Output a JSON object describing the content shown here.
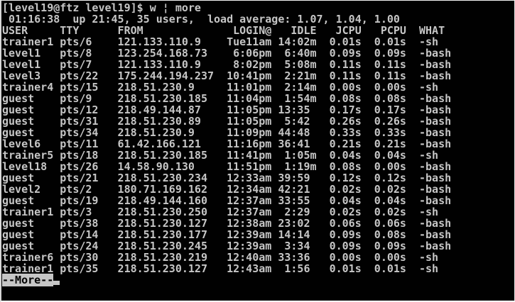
{
  "terminal": {
    "prompt_line": "[level19@ftz level19]$ w ¦ more",
    "uptime_line": " 01:16:38  up 21:45, 35 users,  load average: 1.07, 1.04, 1.00",
    "uptime": {
      "time": "01:16:38",
      "up_duration": "21:45",
      "users_count": "35",
      "load_average": [
        "1.07",
        "1.04",
        "1.00"
      ]
    },
    "header_line": "USER     TTY      FROM              LOGIN@   IDLE   JCPU   PCPU  WHAT",
    "columns": [
      "USER",
      "TTY",
      "FROM",
      "LOGIN@",
      "IDLE",
      "JCPU",
      "PCPU",
      "WHAT"
    ],
    "rows": [
      {
        "user": "trainer1",
        "tty": "pts/6",
        "from": "121.133.110.9",
        "login": "Tue11am",
        "idle": "14:02m",
        "jcpu": "0.01s",
        "pcpu": "0.01s",
        "what": "-sh"
      },
      {
        "user": "level1",
        "tty": "pts/8",
        "from": "123.254.168.73",
        "login": "6:06pm",
        "idle": "6:40m",
        "jcpu": "0.09s",
        "pcpu": "0.09s",
        "what": "-bash"
      },
      {
        "user": "level1",
        "tty": "pts/7",
        "from": "121.133.110.9",
        "login": "8:02pm",
        "idle": "5:08m",
        "jcpu": "0.11s",
        "pcpu": "0.11s",
        "what": "-bash"
      },
      {
        "user": "level3",
        "tty": "pts/22",
        "from": "175.244.194.237",
        "login": "10:41pm",
        "idle": "2:21m",
        "jcpu": "0.11s",
        "pcpu": "0.11s",
        "what": "-bash"
      },
      {
        "user": "trainer4",
        "tty": "pts/15",
        "from": "218.51.230.9",
        "login": "11:01pm",
        "idle": "2:14m",
        "jcpu": "0.00s",
        "pcpu": "0.00s",
        "what": "-sh"
      },
      {
        "user": "guest",
        "tty": "pts/9",
        "from": "218.51.230.185",
        "login": "11:04pm",
        "idle": "1:54m",
        "jcpu": "0.08s",
        "pcpu": "0.08s",
        "what": "-bash"
      },
      {
        "user": "guest",
        "tty": "pts/12",
        "from": "218.49.144.87",
        "login": "11:05pm",
        "idle": "13:35",
        "jcpu": "0.17s",
        "pcpu": "0.17s",
        "what": "-bash"
      },
      {
        "user": "guest",
        "tty": "pts/31",
        "from": "218.51.230.89",
        "login": "11:05pm",
        "idle": "5:42",
        "jcpu": "0.26s",
        "pcpu": "0.26s",
        "what": "-bash"
      },
      {
        "user": "guest",
        "tty": "pts/34",
        "from": "218.51.230.9",
        "login": "11:09pm",
        "idle": "44:48",
        "jcpu": "0.33s",
        "pcpu": "0.33s",
        "what": "-bash"
      },
      {
        "user": "level6",
        "tty": "pts/11",
        "from": "61.42.166.121",
        "login": "11:16pm",
        "idle": "36:41",
        "jcpu": "0.21s",
        "pcpu": "0.21s",
        "what": "-bash"
      },
      {
        "user": "trainer5",
        "tty": "pts/18",
        "from": "218.51.230.185",
        "login": "11:41pm",
        "idle": "1:05m",
        "jcpu": "0.04s",
        "pcpu": "0.04s",
        "what": "-sh"
      },
      {
        "user": "level18",
        "tty": "pts/26",
        "from": "14.58.90.130",
        "login": "11:51pm",
        "idle": "1:19m",
        "jcpu": "0.08s",
        "pcpu": "0.00s",
        "what": "-bash"
      },
      {
        "user": "guest",
        "tty": "pts/21",
        "from": "218.51.230.234",
        "login": "12:33am",
        "idle": "39:59",
        "jcpu": "0.12s",
        "pcpu": "0.12s",
        "what": "-bash"
      },
      {
        "user": "level2",
        "tty": "pts/2",
        "from": "180.71.169.162",
        "login": "12:34am",
        "idle": "42:21",
        "jcpu": "0.02s",
        "pcpu": "0.02s",
        "what": "-bash"
      },
      {
        "user": "guest",
        "tty": "pts/19",
        "from": "218.49.144.160",
        "login": "12:37am",
        "idle": "33:55",
        "jcpu": "0.04s",
        "pcpu": "0.04s",
        "what": "-bash"
      },
      {
        "user": "trainer1",
        "tty": "pts/3",
        "from": "218.51.230.250",
        "login": "12:37am",
        "idle": "2:29",
        "jcpu": "0.02s",
        "pcpu": "0.02s",
        "what": "-sh"
      },
      {
        "user": "guest",
        "tty": "pts/38",
        "from": "218.51.230.127",
        "login": "12:38am",
        "idle": "23:02",
        "jcpu": "0.06s",
        "pcpu": "0.06s",
        "what": "-bash"
      },
      {
        "user": "guest",
        "tty": "pts/14",
        "from": "218.51.230.177",
        "login": "12:39am",
        "idle": "14:14",
        "jcpu": "0.09s",
        "pcpu": "0.08s",
        "what": "-bash"
      },
      {
        "user": "guest",
        "tty": "pts/24",
        "from": "218.51.230.245",
        "login": "12:39am",
        "idle": "3:34",
        "jcpu": "0.09s",
        "pcpu": "0.09s",
        "what": "-bash"
      },
      {
        "user": "trainer6",
        "tty": "pts/30",
        "from": "218.51.230.219",
        "login": "12:40am",
        "idle": "33:36",
        "jcpu": "0.00s",
        "pcpu": "0.00s",
        "what": "-sh"
      },
      {
        "user": "trainer1",
        "tty": "pts/35",
        "from": "218.51.230.127",
        "login": "12:43am",
        "idle": "1:56",
        "jcpu": "0.01s",
        "pcpu": "0.01s",
        "what": "-sh"
      }
    ],
    "more_label": "--More--",
    "colors": {
      "background": "#010101",
      "foreground": "#c6c6c6",
      "highlight_bg": "#c6c6c6",
      "highlight_fg": "#000000",
      "frame": "#e8e8e8"
    }
  }
}
